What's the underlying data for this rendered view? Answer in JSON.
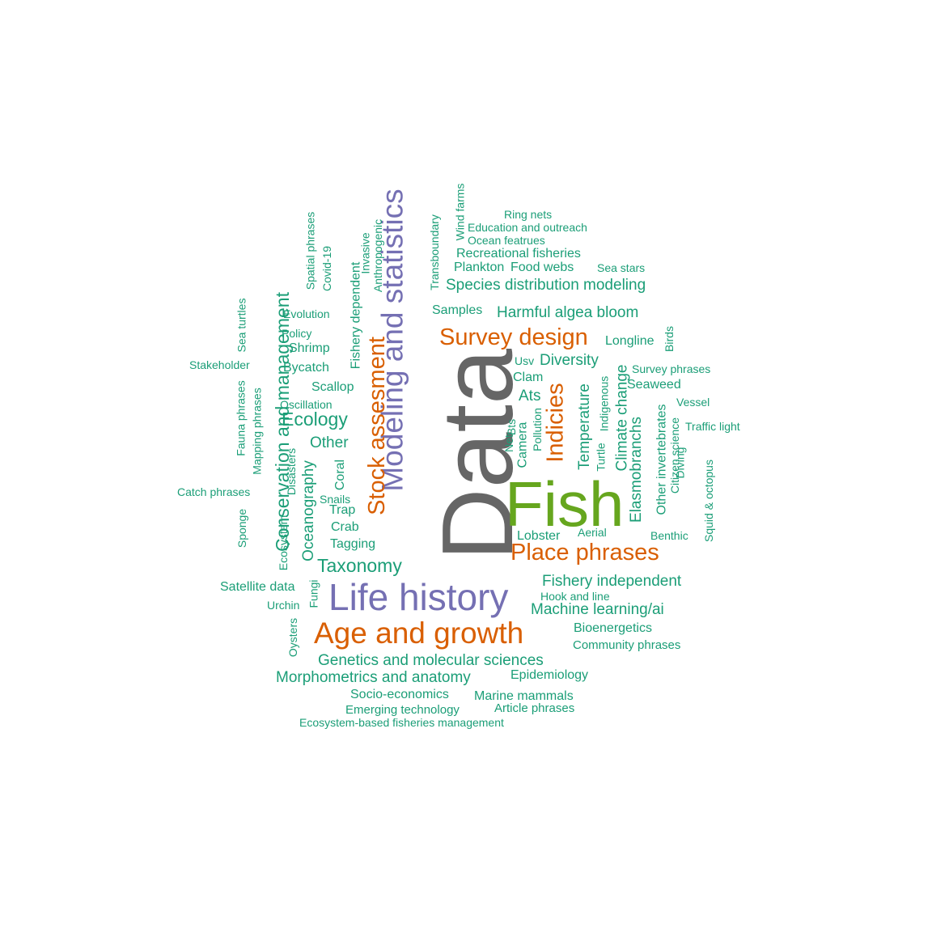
{
  "colors": {
    "green": "#1b9e77",
    "orange": "#d95f02",
    "purple": "#7570b3",
    "lime": "#66a61e",
    "gray": "#666666"
  },
  "words": [
    "Data",
    "Fish",
    "Modeling and statistics",
    "Life history",
    "Age and growth",
    "Stock assesment",
    "Place phrases",
    "Survey design",
    "Indicies",
    "Taxonomy",
    "Conservation and management",
    "Ecology",
    "Other",
    "Fishery dependent",
    "Harmful algea bloom",
    "Species distribution modeling",
    "Recreational fisheries",
    "Plankton",
    "Food webs",
    "Sea stars",
    "Ocean featrues",
    "Education and outreach",
    "Ring nets",
    "Wind farms",
    "Transboundary",
    "Samples",
    "Longline",
    "Birds",
    "Usv",
    "Diversity",
    "Clam",
    "Ats",
    "Survey phrases",
    "Seaweed",
    "Vessel",
    "Traffic light",
    "Temperature",
    "Turtle",
    "Indigenous",
    "Climate change",
    "Elasmobranchs",
    "Other invertebrates",
    "Citizen science",
    "Diving",
    "Squid & octopus",
    "Benthic",
    "Lobster",
    "Aerial",
    "Pollution",
    "Camera",
    "Bts",
    "Net",
    "Fishery independent",
    "Hook and line",
    "Machine learning/ai",
    "Bioenergetics",
    "Community phrases",
    "Genetics and molecular sciences",
    "Epidemiology",
    "Morphometrics and anatomy",
    "Socio-economics",
    "Marine mammals",
    "Emerging technology",
    "Article phrases",
    "Ecosystem-based fisheries management",
    "Satellite data",
    "Urchin",
    "Fungi",
    "Oysters",
    "Ecosystem",
    "Oceanography",
    "Coral",
    "Snails",
    "Trap",
    "Crab",
    "Tagging",
    "Disasters",
    "Catch phrases",
    "Sponge",
    "Mapping phrases",
    "Fauna phrases",
    "Sea turtles",
    "Stakeholder",
    "Policy",
    "Shrimp",
    "Bycatch",
    "Scallop",
    "Oscillation",
    "Evolution",
    "Spatial phrases",
    "Covid-19",
    "Invasive",
    "Anthropogenic"
  ]
}
